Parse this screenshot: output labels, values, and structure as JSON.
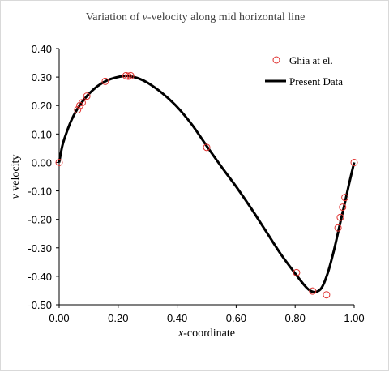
{
  "chart_data": {
    "type": "scatter",
    "title_prefix": "Variation of ",
    "title_var": "v",
    "title_suffix": "-velocity along mid horizontal line",
    "xlabel_var": "x",
    "xlabel_suffix": "-coordinate",
    "ylabel_var": "v",
    "ylabel_suffix": " velocity",
    "xlim": [
      0,
      1
    ],
    "ylim": [
      -0.5,
      0.4
    ],
    "x_ticks": [
      0,
      0.2,
      0.4,
      0.6,
      0.8,
      1.0
    ],
    "x_tick_labels": [
      "0.00",
      "0.20",
      "0.40",
      "0.60",
      "0.80",
      "1.00"
    ],
    "y_ticks": [
      0.4,
      0.3,
      0.2,
      0.1,
      0,
      -0.1,
      -0.2,
      -0.3,
      -0.4,
      -0.5
    ],
    "y_tick_labels": [
      "0.40",
      "0.30",
      "0.20",
      "0.10",
      "0.00",
      "-0.10",
      "-0.20",
      "-0.30",
      "-0.40",
      "-0.50"
    ],
    "grid": false,
    "legend_position": "top-right",
    "series": [
      {
        "name": "Ghia at el.",
        "kind": "markers",
        "color": "#e0312f",
        "points": [
          {
            "x": 0.0,
            "y": 0.0
          },
          {
            "x": 0.0625,
            "y": 0.185
          },
          {
            "x": 0.0703,
            "y": 0.2
          },
          {
            "x": 0.0781,
            "y": 0.21
          },
          {
            "x": 0.0938,
            "y": 0.233
          },
          {
            "x": 0.1563,
            "y": 0.285
          },
          {
            "x": 0.2266,
            "y": 0.305
          },
          {
            "x": 0.2344,
            "y": 0.303
          },
          {
            "x": 0.2422,
            "y": 0.305
          },
          {
            "x": 0.5,
            "y": 0.053
          },
          {
            "x": 0.8047,
            "y": -0.387
          },
          {
            "x": 0.8594,
            "y": -0.452
          },
          {
            "x": 0.9063,
            "y": -0.465
          },
          {
            "x": 0.9453,
            "y": -0.23
          },
          {
            "x": 0.9531,
            "y": -0.193
          },
          {
            "x": 0.9609,
            "y": -0.157
          },
          {
            "x": 0.9688,
            "y": -0.123
          },
          {
            "x": 1.0,
            "y": 0.0
          }
        ]
      },
      {
        "name": "Present Data",
        "kind": "line",
        "color": "#000000",
        "points": [
          {
            "x": 0.0,
            "y": 0.0
          },
          {
            "x": 0.01,
            "y": 0.055
          },
          {
            "x": 0.02,
            "y": 0.09
          },
          {
            "x": 0.04,
            "y": 0.145
          },
          {
            "x": 0.06,
            "y": 0.185
          },
          {
            "x": 0.08,
            "y": 0.215
          },
          {
            "x": 0.1,
            "y": 0.24
          },
          {
            "x": 0.13,
            "y": 0.268
          },
          {
            "x": 0.16,
            "y": 0.287
          },
          {
            "x": 0.19,
            "y": 0.298
          },
          {
            "x": 0.22,
            "y": 0.304
          },
          {
            "x": 0.24,
            "y": 0.303
          },
          {
            "x": 0.27,
            "y": 0.295
          },
          {
            "x": 0.3,
            "y": 0.28
          },
          {
            "x": 0.35,
            "y": 0.243
          },
          {
            "x": 0.4,
            "y": 0.195
          },
          {
            "x": 0.45,
            "y": 0.133
          },
          {
            "x": 0.5,
            "y": 0.058
          },
          {
            "x": 0.55,
            "y": -0.015
          },
          {
            "x": 0.6,
            "y": -0.085
          },
          {
            "x": 0.65,
            "y": -0.16
          },
          {
            "x": 0.7,
            "y": -0.24
          },
          {
            "x": 0.75,
            "y": -0.32
          },
          {
            "x": 0.8,
            "y": -0.39
          },
          {
            "x": 0.83,
            "y": -0.43
          },
          {
            "x": 0.85,
            "y": -0.45
          },
          {
            "x": 0.87,
            "y": -0.455
          },
          {
            "x": 0.89,
            "y": -0.44
          },
          {
            "x": 0.91,
            "y": -0.39
          },
          {
            "x": 0.93,
            "y": -0.315
          },
          {
            "x": 0.95,
            "y": -0.225
          },
          {
            "x": 0.97,
            "y": -0.135
          },
          {
            "x": 0.985,
            "y": -0.065
          },
          {
            "x": 1.0,
            "y": 0.0
          }
        ]
      }
    ]
  }
}
